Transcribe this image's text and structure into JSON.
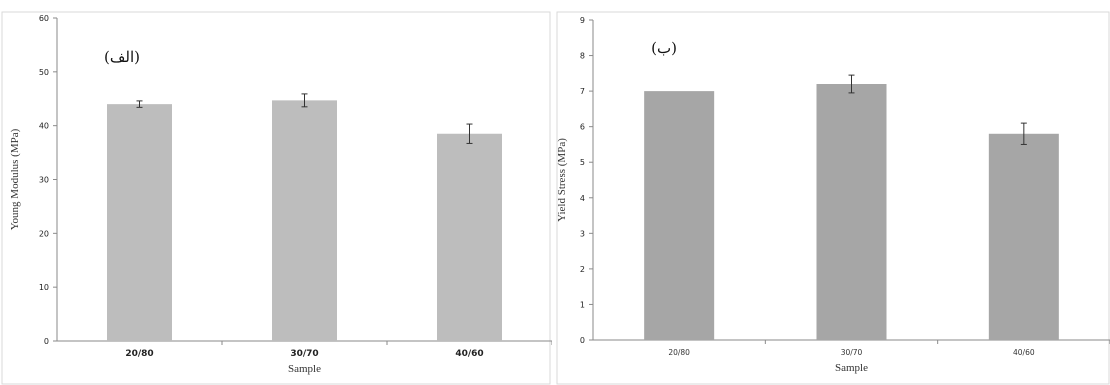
{
  "chart_data": [
    {
      "type": "bar",
      "panel_label": "(الف)",
      "categories": [
        "20/80",
        "30/70",
        "40/60"
      ],
      "values": [
        44,
        44.7,
        38.5
      ],
      "errors": [
        0.6,
        1.2,
        1.8
      ],
      "xlabel": "Sample",
      "ylabel": "Young Modulus (MPa)",
      "ylim": [
        0,
        60
      ],
      "yticks": [
        "0",
        "10",
        "20",
        "30",
        "40",
        "50",
        "60"
      ],
      "bar_color": "#bdbdbd",
      "grid": false
    },
    {
      "type": "bar",
      "panel_label": "(ب)",
      "categories": [
        "20/80",
        "30/70",
        "40/60"
      ],
      "values": [
        7.0,
        7.2,
        5.8
      ],
      "errors": [
        0,
        0.25,
        0.3
      ],
      "xlabel": "Sample",
      "ylabel": "Yield Stress (MPa)",
      "ylim": [
        0,
        9
      ],
      "yticks": [
        "0",
        "1",
        "2",
        "3",
        "4",
        "5",
        "6",
        "7",
        "8",
        "9"
      ],
      "bar_color": "#a6a6a6",
      "grid": false
    }
  ]
}
